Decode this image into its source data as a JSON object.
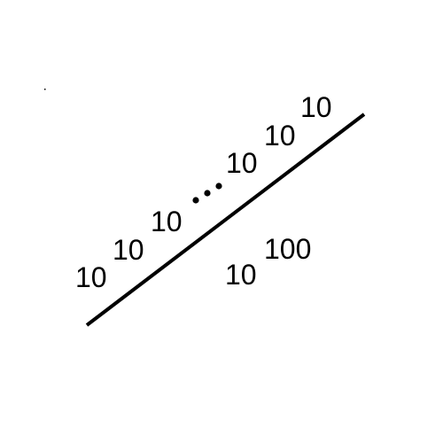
{
  "diagram": {
    "left_tower": {
      "levels": [
        "10",
        "10",
        "10"
      ]
    },
    "ellipsis": "...",
    "right_tower": {
      "levels": [
        "10",
        "10",
        "10"
      ]
    },
    "below_expression": {
      "base": "10",
      "exponent": "100"
    },
    "colors": {
      "stroke": "#000000",
      "background": "#ffffff"
    }
  }
}
